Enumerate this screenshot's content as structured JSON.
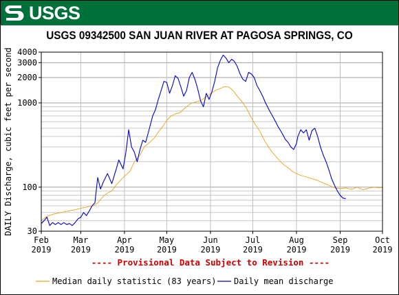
{
  "header": {
    "logo_text": "USGS",
    "title": "USGS 09342500 SAN JUAN RIVER AT PAGOSA SPRINGS, CO"
  },
  "colors": {
    "banner": "#00703a",
    "median": "#e8a31c",
    "mean": "#0000cc",
    "revision": "#cc0000"
  },
  "chart_data": {
    "type": "line",
    "ylabel": "DAILY Discharge, cubic feet per second",
    "yscale": "log",
    "ylim": [
      30,
      4000
    ],
    "y_ticks": [
      {
        "value": 30,
        "label": "30"
      },
      {
        "value": 100,
        "label": "100"
      },
      {
        "value": 1000,
        "label": "1000"
      },
      {
        "value": 2000,
        "label": "2000"
      },
      {
        "value": 3000,
        "label": "3000"
      },
      {
        "value": 4000,
        "label": "4000"
      }
    ],
    "x_ticks": [
      {
        "month": "Feb",
        "year": "2019",
        "date": "2019-02-01"
      },
      {
        "month": "Mar",
        "year": "2019",
        "date": "2019-03-01"
      },
      {
        "month": "Apr",
        "year": "2019",
        "date": "2019-04-01"
      },
      {
        "month": "May",
        "year": "2019",
        "date": "2019-05-01"
      },
      {
        "month": "Jun",
        "year": "2019",
        "date": "2019-06-01"
      },
      {
        "month": "Jul",
        "year": "2019",
        "date": "2019-07-01"
      },
      {
        "month": "Aug",
        "year": "2019",
        "date": "2019-08-01"
      },
      {
        "month": "Sep",
        "year": "2019",
        "date": "2019-09-01"
      },
      {
        "month": "Oct",
        "year": "2019",
        "date": "2019-10-01"
      }
    ],
    "xlim": [
      "2019-02-01",
      "2019-10-01"
    ],
    "grid": true,
    "annotation": "---- Provisional Data Subject to Revision ----",
    "series": [
      {
        "name": "Median daily statistic (83 years)",
        "color": "#e8a31c",
        "points": [
          [
            "2019-02-01",
            40
          ],
          [
            "2019-02-05",
            45
          ],
          [
            "2019-02-10",
            48
          ],
          [
            "2019-02-15",
            50
          ],
          [
            "2019-02-20",
            52
          ],
          [
            "2019-02-25",
            54
          ],
          [
            "2019-03-01",
            56
          ],
          [
            "2019-03-05",
            58
          ],
          [
            "2019-03-10",
            60
          ],
          [
            "2019-03-13",
            65
          ],
          [
            "2019-03-17",
            78
          ],
          [
            "2019-03-20",
            85
          ],
          [
            "2019-03-23",
            90
          ],
          [
            "2019-03-26",
            105
          ],
          [
            "2019-03-29",
            120
          ],
          [
            "2019-04-01",
            135
          ],
          [
            "2019-04-05",
            155
          ],
          [
            "2019-04-08",
            200
          ],
          [
            "2019-04-12",
            240
          ],
          [
            "2019-04-15",
            300
          ],
          [
            "2019-04-18",
            330
          ],
          [
            "2019-04-22",
            380
          ],
          [
            "2019-04-25",
            450
          ],
          [
            "2019-04-28",
            520
          ],
          [
            "2019-05-01",
            620
          ],
          [
            "2019-05-04",
            700
          ],
          [
            "2019-05-07",
            740
          ],
          [
            "2019-05-10",
            760
          ],
          [
            "2019-05-14",
            870
          ],
          [
            "2019-05-18",
            980
          ],
          [
            "2019-05-21",
            1020
          ],
          [
            "2019-05-25",
            1060
          ],
          [
            "2019-05-29",
            1180
          ],
          [
            "2019-06-02",
            1320
          ],
          [
            "2019-06-05",
            1420
          ],
          [
            "2019-06-08",
            1480
          ],
          [
            "2019-06-11",
            1560
          ],
          [
            "2019-06-14",
            1540
          ],
          [
            "2019-06-17",
            1400
          ],
          [
            "2019-06-20",
            1200
          ],
          [
            "2019-06-23",
            1050
          ],
          [
            "2019-06-26",
            900
          ],
          [
            "2019-06-29",
            720
          ],
          [
            "2019-07-02",
            580
          ],
          [
            "2019-07-06",
            460
          ],
          [
            "2019-07-10",
            340
          ],
          [
            "2019-07-14",
            270
          ],
          [
            "2019-07-18",
            225
          ],
          [
            "2019-07-22",
            190
          ],
          [
            "2019-07-26",
            170
          ],
          [
            "2019-07-30",
            150
          ],
          [
            "2019-08-04",
            138
          ],
          [
            "2019-08-08",
            132
          ],
          [
            "2019-08-12",
            126
          ],
          [
            "2019-08-16",
            120
          ],
          [
            "2019-08-20",
            112
          ],
          [
            "2019-08-24",
            105
          ],
          [
            "2019-08-28",
            98
          ],
          [
            "2019-09-01",
            96
          ],
          [
            "2019-09-05",
            98
          ],
          [
            "2019-09-09",
            94
          ],
          [
            "2019-09-13",
            100
          ],
          [
            "2019-09-17",
            93
          ],
          [
            "2019-09-21",
            97
          ],
          [
            "2019-09-25",
            100
          ],
          [
            "2019-09-29",
            98
          ],
          [
            "2019-10-01",
            99
          ]
        ]
      },
      {
        "name": "Daily mean discharge",
        "color": "#0000cc",
        "points": [
          [
            "2019-02-01",
            37
          ],
          [
            "2019-02-03",
            40
          ],
          [
            "2019-02-05",
            44
          ],
          [
            "2019-02-07",
            35
          ],
          [
            "2019-02-09",
            38
          ],
          [
            "2019-02-11",
            36
          ],
          [
            "2019-02-13",
            38
          ],
          [
            "2019-02-15",
            36
          ],
          [
            "2019-02-17",
            38
          ],
          [
            "2019-02-19",
            36
          ],
          [
            "2019-02-21",
            37
          ],
          [
            "2019-02-23",
            35
          ],
          [
            "2019-02-25",
            38
          ],
          [
            "2019-02-27",
            42
          ],
          [
            "2019-03-01",
            44
          ],
          [
            "2019-03-03",
            50
          ],
          [
            "2019-03-05",
            46
          ],
          [
            "2019-03-07",
            52
          ],
          [
            "2019-03-09",
            60
          ],
          [
            "2019-03-11",
            65
          ],
          [
            "2019-03-13",
            130
          ],
          [
            "2019-03-15",
            95
          ],
          [
            "2019-03-17",
            115
          ],
          [
            "2019-03-20",
            145
          ],
          [
            "2019-03-23",
            110
          ],
          [
            "2019-03-26",
            160
          ],
          [
            "2019-03-28",
            210
          ],
          [
            "2019-03-31",
            165
          ],
          [
            "2019-04-02",
            260
          ],
          [
            "2019-04-04",
            480
          ],
          [
            "2019-04-06",
            300
          ],
          [
            "2019-04-08",
            260
          ],
          [
            "2019-04-10",
            200
          ],
          [
            "2019-04-12",
            280
          ],
          [
            "2019-04-14",
            360
          ],
          [
            "2019-04-16",
            340
          ],
          [
            "2019-04-18",
            450
          ],
          [
            "2019-04-21",
            700
          ],
          [
            "2019-04-23",
            830
          ],
          [
            "2019-04-25",
            1100
          ],
          [
            "2019-04-27",
            1400
          ],
          [
            "2019-04-29",
            1800
          ],
          [
            "2019-05-01",
            1750
          ],
          [
            "2019-05-03",
            1300
          ],
          [
            "2019-05-05",
            1600
          ],
          [
            "2019-05-07",
            2100
          ],
          [
            "2019-05-09",
            1950
          ],
          [
            "2019-05-11",
            1550
          ],
          [
            "2019-05-13",
            1200
          ],
          [
            "2019-05-15",
            1400
          ],
          [
            "2019-05-17",
            2000
          ],
          [
            "2019-05-19",
            2300
          ],
          [
            "2019-05-21",
            1900
          ],
          [
            "2019-05-23",
            1450
          ],
          [
            "2019-05-25",
            1050
          ],
          [
            "2019-05-27",
            900
          ],
          [
            "2019-05-29",
            1300
          ],
          [
            "2019-05-31",
            1100
          ],
          [
            "2019-06-02",
            1350
          ],
          [
            "2019-06-04",
            1800
          ],
          [
            "2019-06-06",
            2600
          ],
          [
            "2019-06-08",
            3200
          ],
          [
            "2019-06-10",
            3700
          ],
          [
            "2019-06-12",
            3400
          ],
          [
            "2019-06-14",
            3000
          ],
          [
            "2019-06-16",
            3300
          ],
          [
            "2019-06-18",
            3100
          ],
          [
            "2019-06-20",
            2700
          ],
          [
            "2019-06-22",
            2200
          ],
          [
            "2019-06-24",
            1900
          ],
          [
            "2019-06-26",
            1800
          ],
          [
            "2019-06-28",
            2300
          ],
          [
            "2019-06-30",
            2200
          ],
          [
            "2019-07-02",
            2000
          ],
          [
            "2019-07-04",
            1600
          ],
          [
            "2019-07-06",
            1400
          ],
          [
            "2019-07-08",
            1200
          ],
          [
            "2019-07-10",
            1000
          ],
          [
            "2019-07-13",
            800
          ],
          [
            "2019-07-16",
            650
          ],
          [
            "2019-07-19",
            520
          ],
          [
            "2019-07-22",
            430
          ],
          [
            "2019-07-24",
            370
          ],
          [
            "2019-07-26",
            340
          ],
          [
            "2019-07-28",
            300
          ],
          [
            "2019-07-30",
            280
          ],
          [
            "2019-08-01",
            330
          ],
          [
            "2019-08-02",
            400
          ],
          [
            "2019-08-04",
            480
          ],
          [
            "2019-08-06",
            440
          ],
          [
            "2019-08-08",
            480
          ],
          [
            "2019-08-10",
            360
          ],
          [
            "2019-08-12",
            470
          ],
          [
            "2019-08-14",
            500
          ],
          [
            "2019-08-16",
            400
          ],
          [
            "2019-08-18",
            300
          ],
          [
            "2019-08-20",
            240
          ],
          [
            "2019-08-22",
            200
          ],
          [
            "2019-08-24",
            160
          ],
          [
            "2019-08-26",
            125
          ],
          [
            "2019-08-28",
            105
          ],
          [
            "2019-08-30",
            90
          ],
          [
            "2019-09-01",
            80
          ],
          [
            "2019-09-03",
            74
          ],
          [
            "2019-09-05",
            73
          ]
        ]
      }
    ]
  }
}
